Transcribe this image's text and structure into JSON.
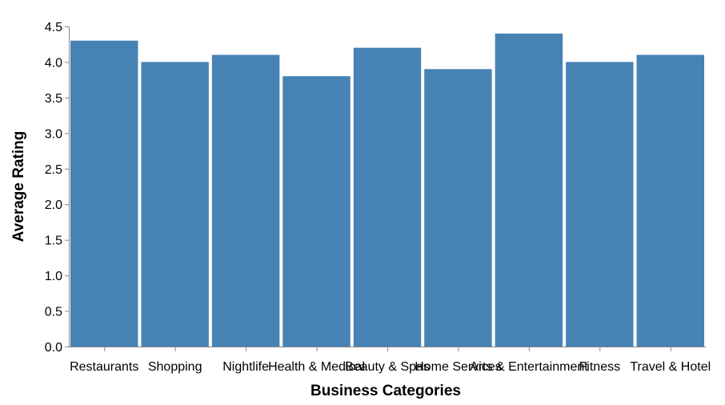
{
  "chart_data": {
    "type": "bar",
    "title": "",
    "xlabel": "Business Categories",
    "ylabel": "Average Rating",
    "categories": [
      "Restaurants",
      "Shopping",
      "Nightlife",
      "Health & Medical",
      "Beauty & Spas",
      "Home Services",
      "Arts & Entertainment",
      "Fitness",
      "Travel & Hotel"
    ],
    "values": [
      4.3,
      4.0,
      4.1,
      3.8,
      4.2,
      3.9,
      4.4,
      4.0,
      4.1
    ],
    "ylim": [
      0,
      4.5
    ],
    "yticks": [
      "0.0",
      "0.5",
      "1.0",
      "1.5",
      "2.0",
      "2.5",
      "3.0",
      "3.5",
      "4.0",
      "4.5"
    ],
    "grid": false,
    "colors": {
      "bar": "#4682b4",
      "axis": "#888888"
    }
  }
}
